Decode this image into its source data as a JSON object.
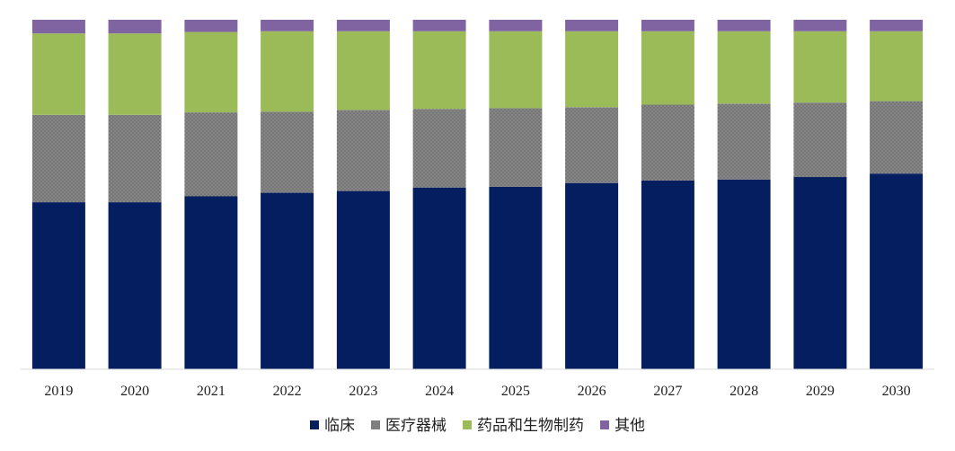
{
  "chart_data": {
    "type": "bar",
    "stacked": true,
    "normalized": true,
    "categories": [
      "2019",
      "2020",
      "2021",
      "2022",
      "2023",
      "2024",
      "2025",
      "2026",
      "2027",
      "2028",
      "2029",
      "2030"
    ],
    "series": [
      {
        "name": "临床",
        "color": "#041E5F",
        "values": [
          47.8,
          47.8,
          49.5,
          50.5,
          51.0,
          52.0,
          52.2,
          53.3,
          54.0,
          54.3,
          55.0,
          56.0
        ]
      },
      {
        "name": "医疗器械",
        "color": "#7F7F7F",
        "pattern": "crosshatch",
        "values": [
          25.0,
          25.0,
          24.0,
          23.2,
          23.2,
          22.5,
          22.5,
          21.7,
          21.7,
          21.7,
          21.3,
          20.7
        ]
      },
      {
        "name": "药品和生物制药",
        "color": "#9BBB59",
        "values": [
          23.3,
          23.3,
          23.0,
          23.0,
          22.5,
          22.2,
          22.0,
          21.7,
          21.0,
          20.7,
          20.4,
          20.0
        ]
      },
      {
        "name": "其他",
        "color": "#8064A2",
        "values": [
          3.9,
          3.9,
          3.5,
          3.3,
          3.3,
          3.3,
          3.3,
          3.3,
          3.3,
          3.3,
          3.3,
          3.3
        ]
      }
    ],
    "ylim": [
      0,
      100
    ],
    "title": "",
    "xlabel": "",
    "ylabel": "",
    "grid": false,
    "legend_position": "bottom"
  },
  "colors": {
    "axis": "#D9D9D9",
    "text": "#222222"
  }
}
